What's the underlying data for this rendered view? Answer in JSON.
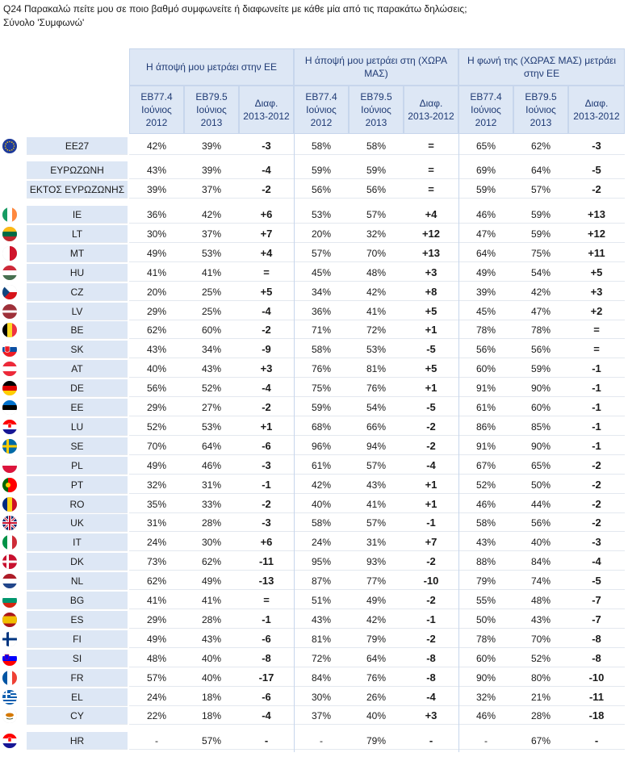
{
  "title": {
    "line1": "Q24 Παρακαλώ πείτε μου σε ποιο βαθμό συμφωνείτε ή διαφωνείτε με κάθε μία από τις παρακάτω δηλώσεις;",
    "line2": "Σύνολο 'Συμφωνώ'"
  },
  "groups": [
    {
      "label": "Η άποψή μου μετράει στην ΕΕ"
    },
    {
      "label": "Η άποψή μου μετράει στη (ΧΩΡΑ ΜΑΣ)"
    },
    {
      "label": "Η φωνή της (ΧΩΡΑΣ ΜΑΣ) μετράει στην ΕΕ"
    }
  ],
  "subheaders": [
    "EB77.4 Ιούνιος 2012",
    "EB79.5 Ιούνιος 2013",
    "Διαφ. 2013-2012"
  ],
  "sections": [
    {
      "rows": [
        {
          "name": "ΕΕ27",
          "flag": "eu-flag-icon",
          "v": [
            "42%",
            "39%",
            "-3",
            "58%",
            "58%",
            "=",
            "65%",
            "62%",
            "-3"
          ]
        }
      ]
    },
    {
      "rows": [
        {
          "name": "ΕΥΡΩΖΩΝΗ",
          "flag": "",
          "v": [
            "43%",
            "39%",
            "-4",
            "59%",
            "59%",
            "=",
            "69%",
            "64%",
            "-5"
          ]
        },
        {
          "name": "ΕΚΤΟΣ ΕΥΡΩΖΩΝΗΣ",
          "flag": "",
          "v": [
            "39%",
            "37%",
            "-2",
            "56%",
            "56%",
            "=",
            "59%",
            "57%",
            "-2"
          ]
        }
      ]
    },
    {
      "rows": [
        {
          "name": "IE",
          "flag": "ireland-flag-icon",
          "v": [
            "36%",
            "42%",
            "+6",
            "53%",
            "57%",
            "+4",
            "46%",
            "59%",
            "+13"
          ]
        },
        {
          "name": "LT",
          "flag": "lithuania-flag-icon",
          "v": [
            "30%",
            "37%",
            "+7",
            "20%",
            "32%",
            "+12",
            "47%",
            "59%",
            "+12"
          ]
        },
        {
          "name": "MT",
          "flag": "malta-flag-icon",
          "v": [
            "49%",
            "53%",
            "+4",
            "57%",
            "70%",
            "+13",
            "64%",
            "75%",
            "+11"
          ]
        },
        {
          "name": "HU",
          "flag": "hungary-flag-icon",
          "v": [
            "41%",
            "41%",
            "=",
            "45%",
            "48%",
            "+3",
            "49%",
            "54%",
            "+5"
          ]
        },
        {
          "name": "CZ",
          "flag": "czech-flag-icon",
          "v": [
            "20%",
            "25%",
            "+5",
            "34%",
            "42%",
            "+8",
            "39%",
            "42%",
            "+3"
          ]
        },
        {
          "name": "LV",
          "flag": "latvia-flag-icon",
          "v": [
            "29%",
            "25%",
            "-4",
            "36%",
            "41%",
            "+5",
            "45%",
            "47%",
            "+2"
          ]
        },
        {
          "name": "BE",
          "flag": "belgium-flag-icon",
          "v": [
            "62%",
            "60%",
            "-2",
            "71%",
            "72%",
            "+1",
            "78%",
            "78%",
            "="
          ]
        },
        {
          "name": "SK",
          "flag": "slovakia-flag-icon",
          "v": [
            "43%",
            "34%",
            "-9",
            "58%",
            "53%",
            "-5",
            "56%",
            "56%",
            "="
          ]
        },
        {
          "name": "AT",
          "flag": "austria-flag-icon",
          "v": [
            "40%",
            "43%",
            "+3",
            "76%",
            "81%",
            "+5",
            "60%",
            "59%",
            "-1"
          ]
        },
        {
          "name": "DE",
          "flag": "germany-flag-icon",
          "v": [
            "56%",
            "52%",
            "-4",
            "75%",
            "76%",
            "+1",
            "91%",
            "90%",
            "-1"
          ]
        },
        {
          "name": "EE",
          "flag": "estonia-flag-icon",
          "v": [
            "29%",
            "27%",
            "-2",
            "59%",
            "54%",
            "-5",
            "61%",
            "60%",
            "-1"
          ]
        },
        {
          "name": "LU",
          "flag": "croatia-flag-icon",
          "v": [
            "52%",
            "53%",
            "+1",
            "68%",
            "66%",
            "-2",
            "86%",
            "85%",
            "-1"
          ]
        },
        {
          "name": "SE",
          "flag": "sweden-flag-icon",
          "v": [
            "70%",
            "64%",
            "-6",
            "96%",
            "94%",
            "-2",
            "91%",
            "90%",
            "-1"
          ]
        },
        {
          "name": "PL",
          "flag": "poland-flag-icon",
          "v": [
            "49%",
            "46%",
            "-3",
            "61%",
            "57%",
            "-4",
            "67%",
            "65%",
            "-2"
          ]
        },
        {
          "name": "PT",
          "flag": "portugal-flag-icon",
          "v": [
            "32%",
            "31%",
            "-1",
            "42%",
            "43%",
            "+1",
            "52%",
            "50%",
            "-2"
          ]
        },
        {
          "name": "RO",
          "flag": "romania-flag-icon",
          "v": [
            "35%",
            "33%",
            "-2",
            "40%",
            "41%",
            "+1",
            "46%",
            "44%",
            "-2"
          ]
        },
        {
          "name": "UK",
          "flag": "uk-flag-icon",
          "v": [
            "31%",
            "28%",
            "-3",
            "58%",
            "57%",
            "-1",
            "58%",
            "56%",
            "-2"
          ]
        },
        {
          "name": "IT",
          "flag": "italy-flag-icon",
          "v": [
            "24%",
            "30%",
            "+6",
            "24%",
            "31%",
            "+7",
            "43%",
            "40%",
            "-3"
          ]
        },
        {
          "name": "DK",
          "flag": "denmark-flag-icon",
          "v": [
            "73%",
            "62%",
            "-11",
            "95%",
            "93%",
            "-2",
            "88%",
            "84%",
            "-4"
          ]
        },
        {
          "name": "NL",
          "flag": "netherlands-flag-icon",
          "v": [
            "62%",
            "49%",
            "-13",
            "87%",
            "77%",
            "-10",
            "79%",
            "74%",
            "-5"
          ]
        },
        {
          "name": "BG",
          "flag": "bulgaria-flag-icon",
          "v": [
            "41%",
            "41%",
            "=",
            "51%",
            "49%",
            "-2",
            "55%",
            "48%",
            "-7"
          ]
        },
        {
          "name": "ES",
          "flag": "spain-flag-icon",
          "v": [
            "29%",
            "28%",
            "-1",
            "43%",
            "42%",
            "-1",
            "50%",
            "43%",
            "-7"
          ]
        },
        {
          "name": "FI",
          "flag": "finland-flag-icon",
          "v": [
            "49%",
            "43%",
            "-6",
            "81%",
            "79%",
            "-2",
            "78%",
            "70%",
            "-8"
          ]
        },
        {
          "name": "SI",
          "flag": "slovenia-flag-icon",
          "v": [
            "48%",
            "40%",
            "-8",
            "72%",
            "64%",
            "-8",
            "60%",
            "52%",
            "-8"
          ]
        },
        {
          "name": "FR",
          "flag": "france-flag-icon",
          "v": [
            "57%",
            "40%",
            "-17",
            "84%",
            "76%",
            "-8",
            "90%",
            "80%",
            "-10"
          ]
        },
        {
          "name": "EL",
          "flag": "greece-flag-icon",
          "v": [
            "24%",
            "18%",
            "-6",
            "30%",
            "26%",
            "-4",
            "32%",
            "21%",
            "-11"
          ]
        },
        {
          "name": "CY",
          "flag": "cyprus-flag-icon",
          "v": [
            "22%",
            "18%",
            "-4",
            "37%",
            "40%",
            "+3",
            "46%",
            "28%",
            "-18"
          ]
        }
      ]
    },
    {
      "rows": [
        {
          "name": "HR",
          "flag": "croatia-flag-icon",
          "v": [
            "-",
            "57%",
            "-",
            "-",
            "79%",
            "-",
            "-",
            "67%",
            "-"
          ]
        }
      ]
    }
  ],
  "colors": {
    "header_bg": "#dde7f5",
    "header_text": "#1f3a74",
    "border": "#c7d6ec"
  }
}
